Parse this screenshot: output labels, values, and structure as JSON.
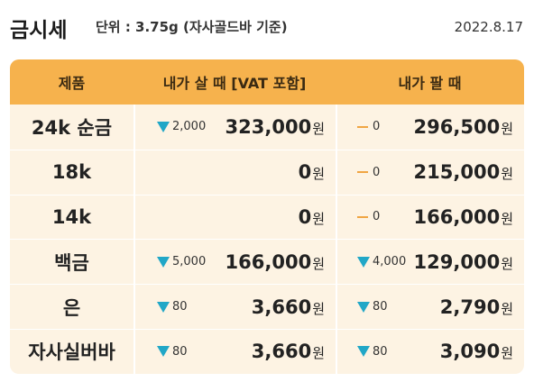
{
  "header": {
    "title": "금시세",
    "unit": "단위 : 3.75g (자사골드바 기준)",
    "date": "2022.8.17"
  },
  "table": {
    "columns": [
      "제품",
      "내가 살 때 [VAT 포함]",
      "내가 팔 때"
    ],
    "currency": "원",
    "rows": [
      {
        "name": "24k 순금",
        "buy": {
          "change_type": "down",
          "change": "2,000",
          "price": "323,000"
        },
        "sell": {
          "change_type": "flat",
          "change": "0",
          "price": "296,500"
        }
      },
      {
        "name": "18k",
        "buy": {
          "change_type": "none",
          "change": "",
          "price": "0"
        },
        "sell": {
          "change_type": "flat",
          "change": "0",
          "price": "215,000"
        }
      },
      {
        "name": "14k",
        "buy": {
          "change_type": "none",
          "change": "",
          "price": "0"
        },
        "sell": {
          "change_type": "flat",
          "change": "0",
          "price": "166,000"
        }
      },
      {
        "name": "백금",
        "buy": {
          "change_type": "down",
          "change": "5,000",
          "price": "166,000"
        },
        "sell": {
          "change_type": "down",
          "change": "4,000",
          "price": "129,000"
        }
      },
      {
        "name": "은",
        "buy": {
          "change_type": "down",
          "change": "80",
          "price": "3,660"
        },
        "sell": {
          "change_type": "down",
          "change": "80",
          "price": "2,790"
        }
      },
      {
        "name": "자사실버바",
        "buy": {
          "change_type": "down",
          "change": "80",
          "price": "3,660"
        },
        "sell": {
          "change_type": "down",
          "change": "80",
          "price": "3,090"
        }
      }
    ]
  },
  "colors": {
    "header_bg": "#f6b24d",
    "row_bg": "#fdf3e3",
    "down_arrow": "#21a7c7",
    "flat_dash": "#f0a543"
  }
}
